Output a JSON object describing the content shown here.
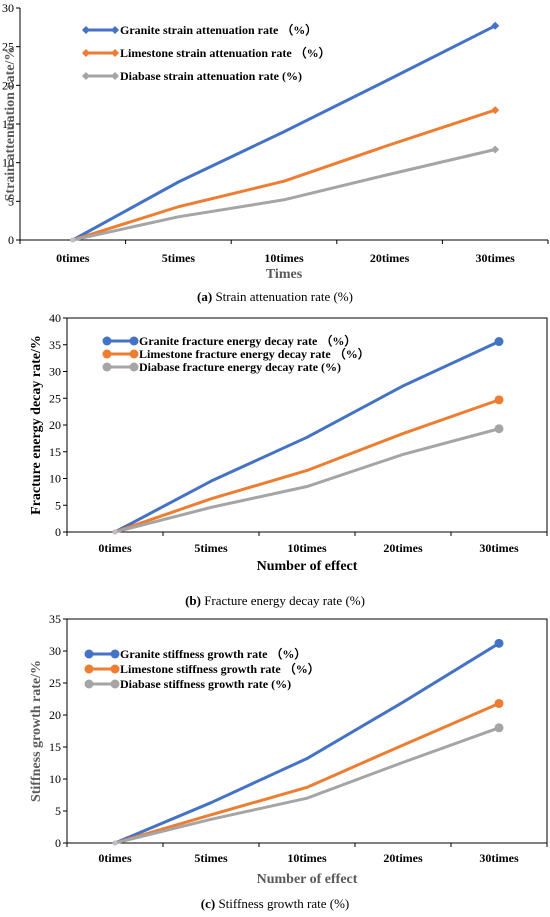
{
  "chart_data": [
    {
      "type": "line",
      "panel": "a",
      "categories": [
        "0times",
        "5times",
        "10times",
        "20times",
        "30times"
      ],
      "series": [
        {
          "name": "Granite strain attenuation rate （%）",
          "values": [
            0,
            7.5,
            14,
            20.8,
            27.7
          ],
          "color": "#4472C4",
          "marker": "diamond"
        },
        {
          "name": "Limestone strain attenuation rate （%）",
          "values": [
            0,
            4.3,
            7.6,
            12.3,
            16.8
          ],
          "color": "#ED7D31",
          "marker": "diamond"
        },
        {
          "name": "Diabase strain attenuation rate (%)",
          "values": [
            0,
            3.0,
            5.2,
            8.5,
            11.7
          ],
          "color": "#A5A5A5",
          "marker": "diamond"
        }
      ],
      "xlabel": "Times",
      "ylabel": "Strain attenuation rate/%",
      "ylim": [
        0,
        30
      ],
      "yticks": [
        0,
        5,
        10,
        15,
        20,
        25,
        30
      ],
      "grid": false,
      "frame": false,
      "axis_title_color": "#595959",
      "caption_label": "(a)",
      "caption_text": " Strain attenuation rate (%)"
    },
    {
      "type": "line",
      "panel": "b",
      "categories": [
        "0times",
        "5times",
        "10times",
        "20times",
        "30times"
      ],
      "series": [
        {
          "name": "Granite fracture energy decay rate （%）",
          "values": [
            0,
            9.5,
            17.7,
            27.3,
            35.6
          ],
          "color": "#4472C4",
          "marker": "circle"
        },
        {
          "name": "Limestone fracture energy decay rate （%）",
          "values": [
            0,
            6.2,
            11.5,
            18.4,
            24.7
          ],
          "color": "#ED7D31",
          "marker": "circle"
        },
        {
          "name": "Diabase fracture energy decay rate (%)",
          "values": [
            0,
            4.6,
            8.5,
            14.5,
            19.3
          ],
          "color": "#A5A5A5",
          "marker": "circle"
        }
      ],
      "xlabel": "Number of effect",
      "ylabel": "Fracture energy decay rate/%",
      "ylim": [
        0,
        40
      ],
      "yticks": [
        0,
        5,
        10,
        15,
        20,
        25,
        30,
        35,
        40
      ],
      "grid": false,
      "frame": true,
      "axis_title_color": "#000000",
      "caption_label": "(b)",
      "caption_text": " Fracture energy decay rate (%)"
    },
    {
      "type": "line",
      "panel": "c",
      "categories": [
        "0times",
        "5times",
        "10times",
        "20times",
        "30times"
      ],
      "series": [
        {
          "name": "Granite stiffness growth rate （%）",
          "values": [
            0,
            6.3,
            13.2,
            22.0,
            31.2
          ],
          "color": "#4472C4",
          "marker": "circle"
        },
        {
          "name": "Limestone stiffness growth rate （%）",
          "values": [
            0,
            4.4,
            8.7,
            15.3,
            21.8
          ],
          "color": "#ED7D31",
          "marker": "circle"
        },
        {
          "name": "Diabase stiffness growth rate (%)",
          "values": [
            0,
            3.7,
            7.0,
            12.6,
            18.0
          ],
          "color": "#A5A5A5",
          "marker": "circle"
        }
      ],
      "xlabel": "Number of effect",
      "ylabel": "Stiffness growth rate/%",
      "ylim": [
        0,
        35
      ],
      "yticks": [
        0,
        5,
        10,
        15,
        20,
        25,
        30,
        35
      ],
      "grid": false,
      "frame": true,
      "axis_title_color": "#595959",
      "caption_label": "(c)",
      "caption_text": " Stiffness growth rate (%)"
    }
  ]
}
